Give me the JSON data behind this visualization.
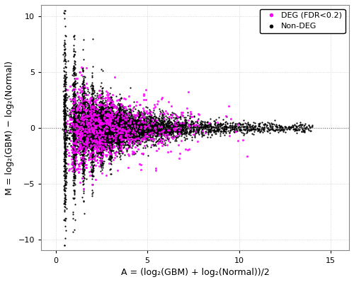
{
  "xlabel": "A = (log₂(GBM) + log₂(Normal))/2",
  "ylabel": "M = log₂(GBM) − log₂(Normal)",
  "xlim": [
    -0.8,
    16
  ],
  "ylim": [
    -11,
    11
  ],
  "xticks": [
    0,
    5,
    10,
    15
  ],
  "yticks": [
    -10,
    -5,
    0,
    5,
    10
  ],
  "deg_color": "#FF00FF",
  "nondeg_color": "#000000",
  "hline_y": 0,
  "hline_color": "#777777",
  "legend_deg_label": "DEG (FDR<0.2)",
  "legend_nondeg_label": "Non-DEG",
  "bg_color": "#FFFFFF",
  "grid_color": "#CCCCCC",
  "seed": 42
}
